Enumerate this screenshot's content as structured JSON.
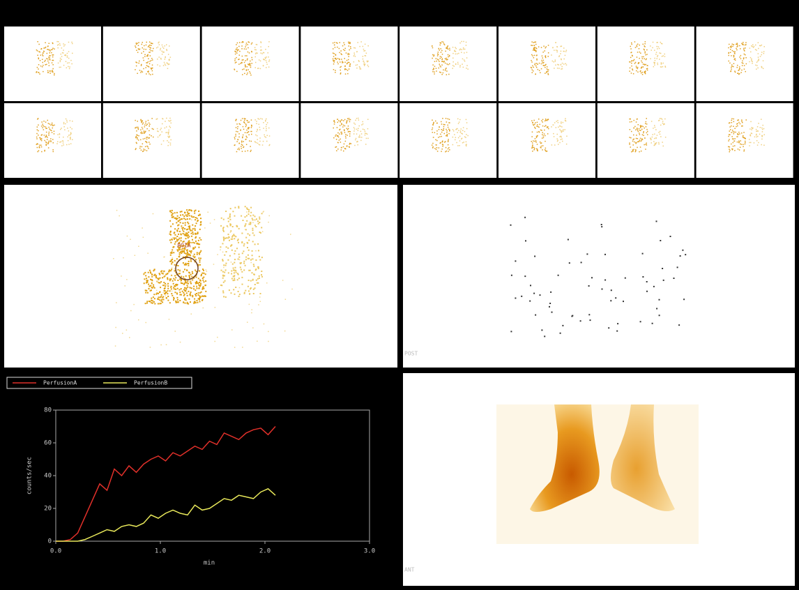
{
  "chart_data": {
    "type": "line",
    "x_label": "min",
    "y_label": "counts/sec",
    "x": [
      0,
      0.07,
      0.14,
      0.21,
      0.28,
      0.35,
      0.42,
      0.49,
      0.56,
      0.63,
      0.7,
      0.77,
      0.84,
      0.91,
      0.98,
      1.05,
      1.12,
      1.19,
      1.26,
      1.33,
      1.4,
      1.47,
      1.54,
      1.61,
      1.68,
      1.75,
      1.82,
      1.89,
      1.96,
      2.03,
      2.1
    ],
    "series": [
      {
        "name": "PerfusionA",
        "color": "#e0302a",
        "values": [
          0,
          0,
          1,
          5,
          15,
          25,
          35,
          31,
          44,
          40,
          46,
          42,
          47,
          50,
          52,
          49,
          54,
          52,
          55,
          58,
          56,
          61,
          59,
          66,
          64,
          62,
          66,
          68,
          69,
          65,
          70
        ]
      },
      {
        "name": "PerfusionB",
        "color": "#e8e85a",
        "values": [
          0,
          0,
          0,
          0,
          1,
          3,
          5,
          7,
          6,
          9,
          10,
          9,
          11,
          16,
          14,
          17,
          19,
          17,
          16,
          22,
          19,
          20,
          23,
          26,
          25,
          28,
          27,
          26,
          30,
          32,
          28
        ]
      }
    ],
    "xlim": [
      0,
      3
    ],
    "xticks": [
      {
        "value": 0,
        "label": "0.0"
      },
      {
        "value": 1,
        "label": "1.0"
      },
      {
        "value": 2,
        "label": "2.0"
      },
      {
        "value": 3,
        "label": "3.0"
      }
    ],
    "ylim": [
      0,
      80
    ],
    "yticks": [
      0,
      20,
      40,
      60,
      80
    ]
  },
  "panels": {
    "roi_label": "ROIA",
    "posterior_label": "POST",
    "anterior_label": "ANT"
  }
}
